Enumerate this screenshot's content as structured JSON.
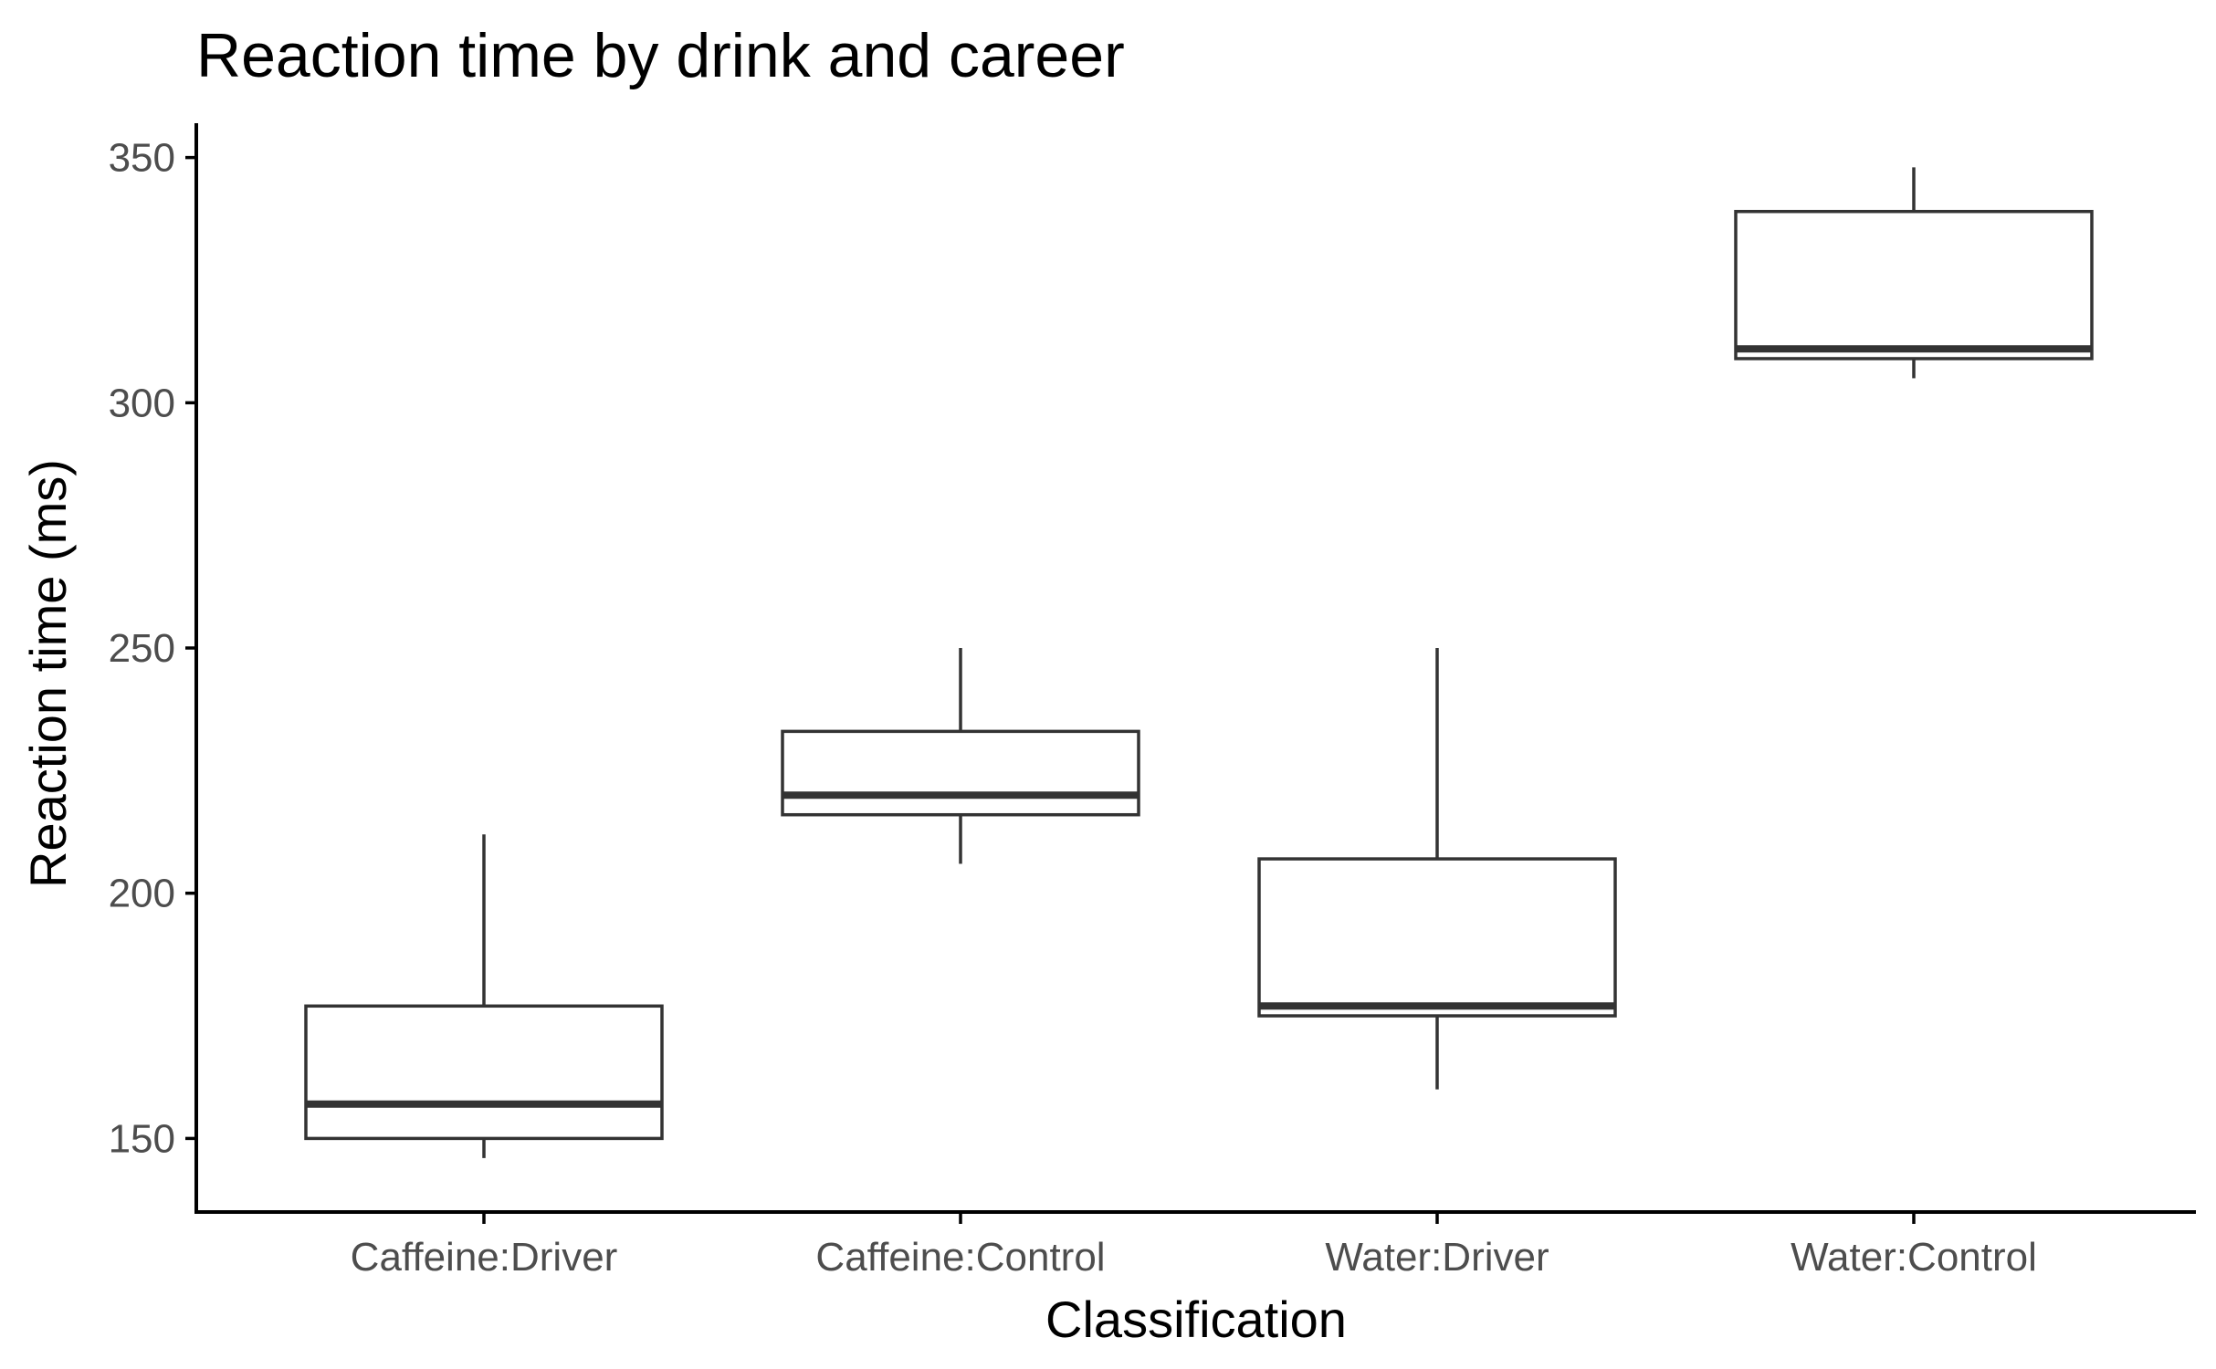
{
  "chart_data": {
    "type": "boxplot",
    "title": "Reaction time by drink and career",
    "xlabel": "Classification",
    "ylabel": "Reaction time (ms)",
    "categories": [
      "Caffeine:Driver",
      "Caffeine:Control",
      "Water:Driver",
      "Water:Control"
    ],
    "boxes": [
      {
        "category": "Caffeine:Driver",
        "whisker_low": 146,
        "q1": 150,
        "median": 157,
        "q3": 177,
        "whisker_high": 212
      },
      {
        "category": "Caffeine:Control",
        "whisker_low": 206,
        "q1": 216,
        "median": 220,
        "q3": 233,
        "whisker_high": 250
      },
      {
        "category": "Water:Driver",
        "whisker_low": 160,
        "q1": 175,
        "median": 177,
        "q3": 207,
        "whisker_high": 250
      },
      {
        "category": "Water:Control",
        "whisker_low": 305,
        "q1": 309,
        "median": 311,
        "q3": 339,
        "whisker_high": 348
      }
    ],
    "yticks": [
      150,
      200,
      250,
      300,
      350
    ],
    "ylim": [
      135,
      357
    ],
    "grid": false,
    "colors": {
      "box_line": "#333333",
      "box_fill": "#ffffff",
      "axis": "#000000",
      "tick_text": "#4d4d4d"
    }
  }
}
